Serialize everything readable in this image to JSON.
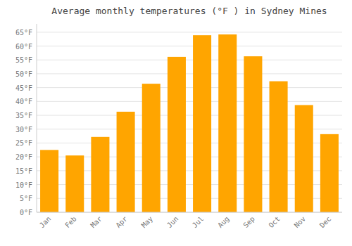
{
  "chart_data": {
    "type": "bar",
    "title": "Average monthly temperatures (°F ) in Sydney Mines",
    "categories": [
      "Jan",
      "Feb",
      "Mar",
      "Apr",
      "May",
      "Jun",
      "Jul",
      "Aug",
      "Sep",
      "Oct",
      "Nov",
      "Dec"
    ],
    "values": [
      22.5,
      20.5,
      27.2,
      36.3,
      46.4,
      56.1,
      63.9,
      64.2,
      56.3,
      47.3,
      38.7,
      28.2
    ],
    "color": "#FFA500",
    "ylim": [
      0,
      68
    ],
    "yticks": [
      {
        "value": 0,
        "label": "0°F"
      },
      {
        "value": 5,
        "label": "5°F"
      },
      {
        "value": 10,
        "label": "10°F"
      },
      {
        "value": 15,
        "label": "15°F"
      },
      {
        "value": 20,
        "label": "20°F"
      },
      {
        "value": 25,
        "label": "25°F"
      },
      {
        "value": 30,
        "label": "30°F"
      },
      {
        "value": 35,
        "label": "35°F"
      },
      {
        "value": 40,
        "label": "40°F"
      },
      {
        "value": 45,
        "label": "45°F"
      },
      {
        "value": 50,
        "label": "50°F"
      },
      {
        "value": 55,
        "label": "55°F"
      },
      {
        "value": 60,
        "label": "60°F"
      },
      {
        "value": 65,
        "label": "65°F"
      }
    ],
    "grid": true
  }
}
